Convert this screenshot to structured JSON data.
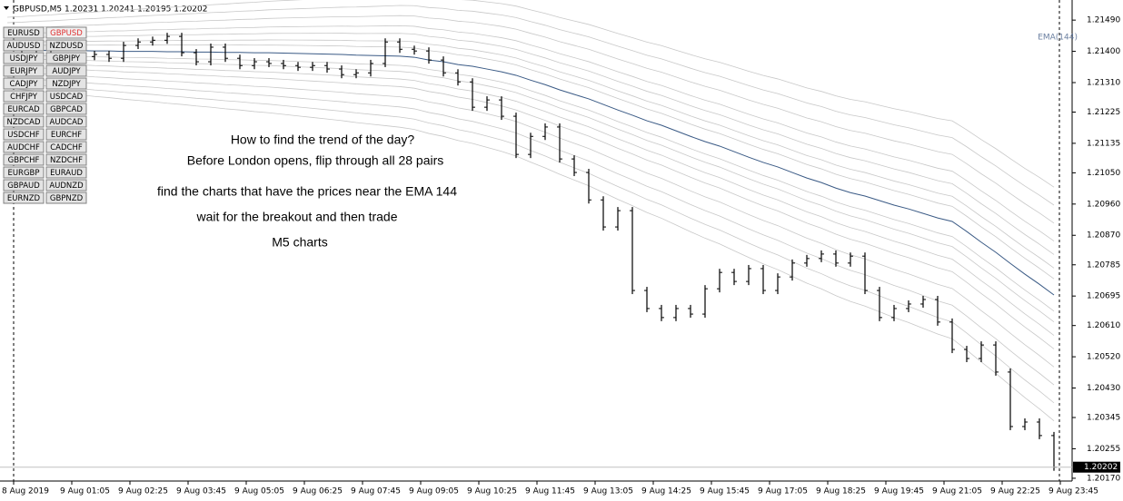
{
  "chart_data": {
    "type": "ohlc",
    "title": "GBPUSD,M5 1.20231 1.20241 1.20195 1.20202",
    "series": [
      {
        "color": "#000000",
        "values": [
          1.21385,
          1.21391,
          1.21396,
          1.21385,
          1.21375,
          1.21385,
          1.21391,
          1.2138,
          1.21417,
          1.21427,
          1.21432,
          1.21443,
          1.21396,
          1.2137,
          1.21412,
          1.2138,
          1.21359,
          1.2137,
          1.21365,
          1.21359,
          1.21354,
          1.21359,
          1.21349,
          1.21333,
          1.21338,
          1.21365,
          1.21427,
          1.21406,
          1.21401,
          1.21375,
          1.21338,
          1.21312,
          1.21239,
          1.2126,
          1.21213,
          1.21103,
          1.21155,
          1.21182,
          1.2109,
          1.21051,
          1.20972,
          1.20894,
          1.20941,
          1.20711,
          1.20659,
          1.20633,
          1.20659,
          1.20643,
          1.20716,
          1.20763,
          1.20737,
          1.20774,
          1.20711,
          1.2075,
          1.2079,
          1.20803,
          1.20816,
          1.2079,
          1.2081,
          1.20711,
          1.20633,
          1.20659,
          1.20672,
          1.20685,
          1.2062,
          1.20541,
          1.20515,
          1.20554,
          1.20476,
          1.20319,
          1.20332,
          1.20293,
          1.20202
        ]
      },
      {
        "name": "EMA(144)",
        "color": "#3a5a85",
        "values": [
          1.21404,
          1.21403,
          1.21403,
          1.21402,
          1.21402,
          1.21402,
          1.21401,
          1.21401,
          1.214,
          1.214,
          1.214,
          1.21399,
          1.21399,
          1.21398,
          1.21398,
          1.21397,
          1.21397,
          1.21396,
          1.21396,
          1.21395,
          1.21394,
          1.21393,
          1.21392,
          1.21391,
          1.21389,
          1.21388,
          1.21387,
          1.21386,
          1.21383,
          1.21375,
          1.2137,
          1.21362,
          1.21357,
          1.21349,
          1.21341,
          1.21331,
          1.21317,
          1.21304,
          1.21289,
          1.21276,
          1.21263,
          1.21247,
          1.21231,
          1.21216,
          1.212,
          1.21187,
          1.21171,
          1.21155,
          1.2114,
          1.21127,
          1.21111,
          1.21095,
          1.2108,
          1.21067,
          1.21051,
          1.21035,
          1.21022,
          1.21006,
          1.20993,
          1.20983,
          1.2097,
          1.20957,
          1.20946,
          1.20933,
          1.2092,
          1.2091,
          1.20881,
          1.2085,
          1.20821,
          1.20789,
          1.20758,
          1.20729,
          1.20698
        ]
      }
    ],
    "ylim": [
      1.20162,
      1.21527
    ],
    "yticks": [
      {
        "value": 1.2149,
        "label": "1.21490"
      },
      {
        "value": 1.214,
        "label": "1.21400"
      },
      {
        "value": 1.2131,
        "label": "1.21310"
      },
      1.21225,
      1.21135,
      {
        "value": 1.2105,
        "label": "1.21050"
      },
      {
        "value": 1.2096,
        "label": "1.20960"
      },
      {
        "value": 1.2087,
        "label": "1.20870"
      },
      1.20785,
      1.20695,
      {
        "value": 1.2061,
        "label": "1.20610"
      },
      {
        "value": 1.2052,
        "label": "1.20520"
      },
      {
        "value": 1.2043,
        "label": "1.20430"
      },
      1.20345,
      1.20255,
      {
        "value": 1.2017,
        "label": "1.20170"
      }
    ],
    "last_price": 1.20202,
    "x_labels": [
      "8 Aug 2019",
      "9 Aug 01:05",
      "9 Aug 02:25",
      "9 Aug 03:45",
      "9 Aug 05:05",
      "9 Aug 06:25",
      "9 Aug 07:45",
      "9 Aug 09:05",
      "9 Aug 10:25",
      "9 Aug 11:45",
      "9 Aug 13:05",
      "9 Aug 14:25",
      "9 Aug 15:45",
      "9 Aug 17:05",
      "9 Aug 18:25",
      "9 Aug 19:45",
      "9 Aug 21:05",
      "9 Aug 22:25",
      "9 Aug 23:45"
    ],
    "annotations": [
      "How to find the trend of the day?",
      "Before London opens, flip through all 28 pairs",
      "find the charts that have the prices near the EMA 144",
      "wait for the breakout and then trade",
      "M5 charts"
    ]
  },
  "pairs": [
    {
      "label": "EURUSD"
    },
    {
      "label": "GBPUSD",
      "selected": true
    },
    {
      "label": "AUDUSD"
    },
    {
      "label": "NZDUSD"
    },
    {
      "label": "USDJPY"
    },
    {
      "label": "GBPJPY"
    },
    {
      "label": "EURJPY"
    },
    {
      "label": "AUDJPY"
    },
    {
      "label": "CADJPY"
    },
    {
      "label": "NZDJPY"
    },
    {
      "label": "CHFJPY"
    },
    {
      "label": "USDCAD"
    },
    {
      "label": "EURCAD"
    },
    {
      "label": "GBPCAD"
    },
    {
      "label": "NZDCAD"
    },
    {
      "label": "AUDCAD"
    },
    {
      "label": "USDCHF"
    },
    {
      "label": "EURCHF"
    },
    {
      "label": "AUDCHF"
    },
    {
      "label": "CADCHF"
    },
    {
      "label": "GBPCHF"
    },
    {
      "label": "NZDCHF"
    },
    {
      "label": "EURGBP"
    },
    {
      "label": "EURAUD"
    },
    {
      "label": "GBPAUD"
    },
    {
      "label": "AUDNZD"
    },
    {
      "label": "EURNZD"
    },
    {
      "label": "GBPNZD"
    }
  ]
}
